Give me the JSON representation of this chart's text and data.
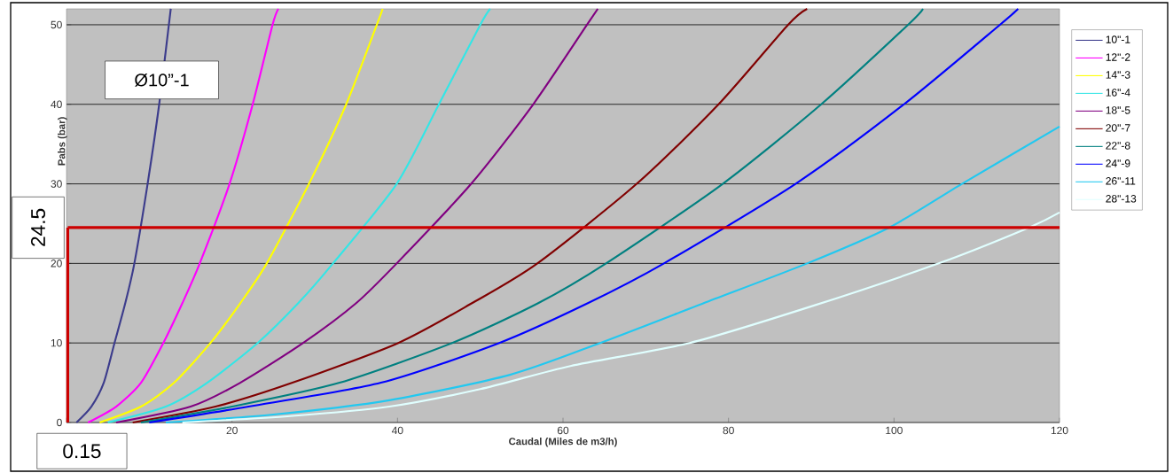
{
  "chart_data": {
    "type": "line",
    "xlabel": "Caudal (Miles de m3/h)",
    "ylabel": "Pabs (bar)",
    "xlim": [
      0,
      120
    ],
    "ylim": [
      0,
      52
    ],
    "xticks": [
      {
        "value": 0,
        "label": null
      },
      20,
      40,
      60,
      80,
      100,
      120
    ],
    "yticks": [
      0,
      10,
      20,
      30,
      40,
      50
    ],
    "grid": "y",
    "legend": "right",
    "annotations": [
      "Ø10”-1"
    ],
    "ref_lines": [
      {
        "axis": "y",
        "value": 24.5,
        "label": "24.5",
        "color": "#cc0000"
      },
      {
        "axis": "x",
        "value": 0.15,
        "label": "0.15",
        "color": "#cc0000"
      }
    ],
    "series": [
      {
        "name": "10\"-1",
        "color": "#3c3c8c",
        "x": [
          1.2,
          3,
          4.5,
          5.8,
          7.1,
          8.2,
          9.8,
          11.2,
          12.6
        ],
        "values": [
          0,
          2,
          5,
          10,
          15,
          20,
          30,
          40,
          52
        ]
      },
      {
        "name": "12\"-2",
        "color": "#ff00ff",
        "x": [
          2.6,
          6,
          9,
          11.7,
          14,
          16.1,
          19.7,
          22.5,
          24.9,
          25.6
        ],
        "values": [
          0,
          2,
          5,
          10,
          15,
          20,
          30,
          40,
          50,
          52
        ]
      },
      {
        "name": "14\"-3",
        "color": "#ffff00",
        "x": [
          4,
          9,
          13,
          17.4,
          21,
          24.2,
          29.3,
          33.8,
          37.5,
          38.2
        ],
        "values": [
          0,
          2,
          5,
          10,
          15,
          20,
          30,
          40,
          50,
          52
        ]
      },
      {
        "name": "16\"-4",
        "color": "#33e6e6",
        "x": [
          5,
          12,
          17,
          23.1,
          28,
          32.2,
          39.9,
          45,
          50,
          51.2
        ],
        "values": [
          0,
          2,
          5,
          10,
          15,
          20,
          30,
          40,
          50,
          52
        ]
      },
      {
        "name": "18\"-5",
        "color": "#800080",
        "x": [
          6,
          15,
          21,
          28.6,
          35,
          39.9,
          48.9,
          56.4,
          62.9,
          64.2
        ],
        "values": [
          0,
          2,
          5,
          10,
          15,
          20,
          30,
          40,
          50,
          52
        ]
      },
      {
        "name": "20\"-7",
        "color": "#800000",
        "x": [
          8,
          18,
          27.3,
          40.1,
          49,
          56.9,
          68.9,
          78.8,
          87.2,
          89.5
        ],
        "values": [
          0,
          2,
          5,
          10,
          15,
          20,
          30,
          40,
          50,
          52
        ]
      },
      {
        "name": "22\"-8",
        "color": "#008080",
        "x": [
          9,
          20,
          33,
          46.6,
          57,
          65.2,
          79.3,
          91.2,
          101.7,
          103.5
        ],
        "values": [
          0,
          2,
          5,
          10,
          15,
          20,
          30,
          40,
          50,
          52
        ]
      },
      {
        "name": "24\"-9",
        "color": "#0000ff",
        "x": [
          10,
          22,
          38,
          52.3,
          63,
          72.2,
          88.1,
          101.2,
          112.8,
          115
        ],
        "values": [
          0,
          2,
          5,
          10,
          15,
          20,
          30,
          40,
          50,
          52
        ]
      },
      {
        "name": "26\"-11",
        "color": "#22c8f0",
        "x": [
          12,
          25,
          39,
          53.6,
          64.5,
          77,
          89.5,
          99.4,
          108.2,
          120
        ],
        "values": [
          0,
          1,
          2.8,
          6,
          10,
          15,
          20,
          24.5,
          30,
          37.2
        ]
      },
      {
        "name": "28\"-13",
        "color": "#e0ffff",
        "x": [
          14,
          27,
          39,
          50,
          60.9,
          75.3,
          90,
          105.4,
          116.3,
          120
        ],
        "values": [
          0,
          0.8,
          2,
          4.2,
          7.1,
          10,
          14.6,
          20,
          24.5,
          26.4
        ]
      }
    ]
  }
}
